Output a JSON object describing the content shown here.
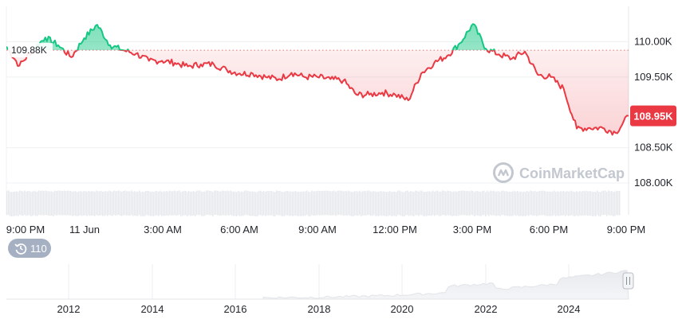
{
  "chart_data": {
    "type": "line",
    "title": "",
    "xlabel": "",
    "ylabel": "",
    "y_ticks": [
      "110.00K",
      "109.50K",
      "108.50K",
      "108.00K"
    ],
    "x_ticks": [
      "9:00 PM",
      "11 Jun",
      "3:00 AM",
      "6:00 AM",
      "9:00 AM",
      "12:00 PM",
      "3:00 PM",
      "6:00 PM",
      "9:00 PM"
    ],
    "ylim": [
      107.55,
      110.5
    ],
    "reference_value": 109.88,
    "reference_label": "109.88K",
    "current_value": 108.95,
    "current_label": "108.95K",
    "grid": true,
    "colors": {
      "above": "#16c784",
      "below": "#ea3943",
      "reference_line": "#ea3943"
    },
    "series": [
      {
        "x": [
          0,
          0.5,
          1,
          1.5,
          2,
          2.5,
          3,
          3.5,
          4,
          4.5,
          5,
          5.5,
          6,
          6.5,
          7,
          7.5,
          8,
          8.5,
          9,
          9.5,
          10,
          10.5,
          11,
          11.5,
          12,
          12.5,
          13,
          13.5,
          14,
          14.5,
          15,
          15.5,
          16,
          16.5,
          17,
          17.5,
          18,
          18.5,
          19,
          19.5,
          20,
          20.5,
          21,
          21.5,
          22,
          22.5,
          23,
          23.5,
          24
        ],
        "values": [
          109.93,
          109.66,
          109.88,
          110.06,
          109.95,
          109.78,
          110.05,
          110.24,
          109.95,
          109.88,
          109.83,
          109.73,
          109.73,
          109.7,
          109.65,
          109.68,
          109.68,
          109.6,
          109.55,
          109.55,
          109.5,
          109.47,
          109.56,
          109.5,
          109.5,
          109.47,
          109.45,
          109.25,
          109.25,
          109.28,
          109.25,
          109.17,
          109.55,
          109.7,
          109.8,
          109.98,
          110.25,
          109.9,
          109.82,
          109.76,
          109.86,
          109.53,
          109.5,
          109.33,
          108.77,
          108.78,
          108.78,
          108.71,
          108.95
        ]
      }
    ],
    "volume": {
      "level": 0.85
    },
    "navigator": {
      "x_ticks": [
        "2012",
        "2014",
        "2016",
        "2018",
        "2020",
        "2022",
        "2024"
      ],
      "badge": "110",
      "badge_icon": "history-icon",
      "handle_icon": "drag-handle-icon"
    }
  },
  "watermark": "CoinMarketCap",
  "watermark_icon": "coinmarketcap-logo-icon"
}
